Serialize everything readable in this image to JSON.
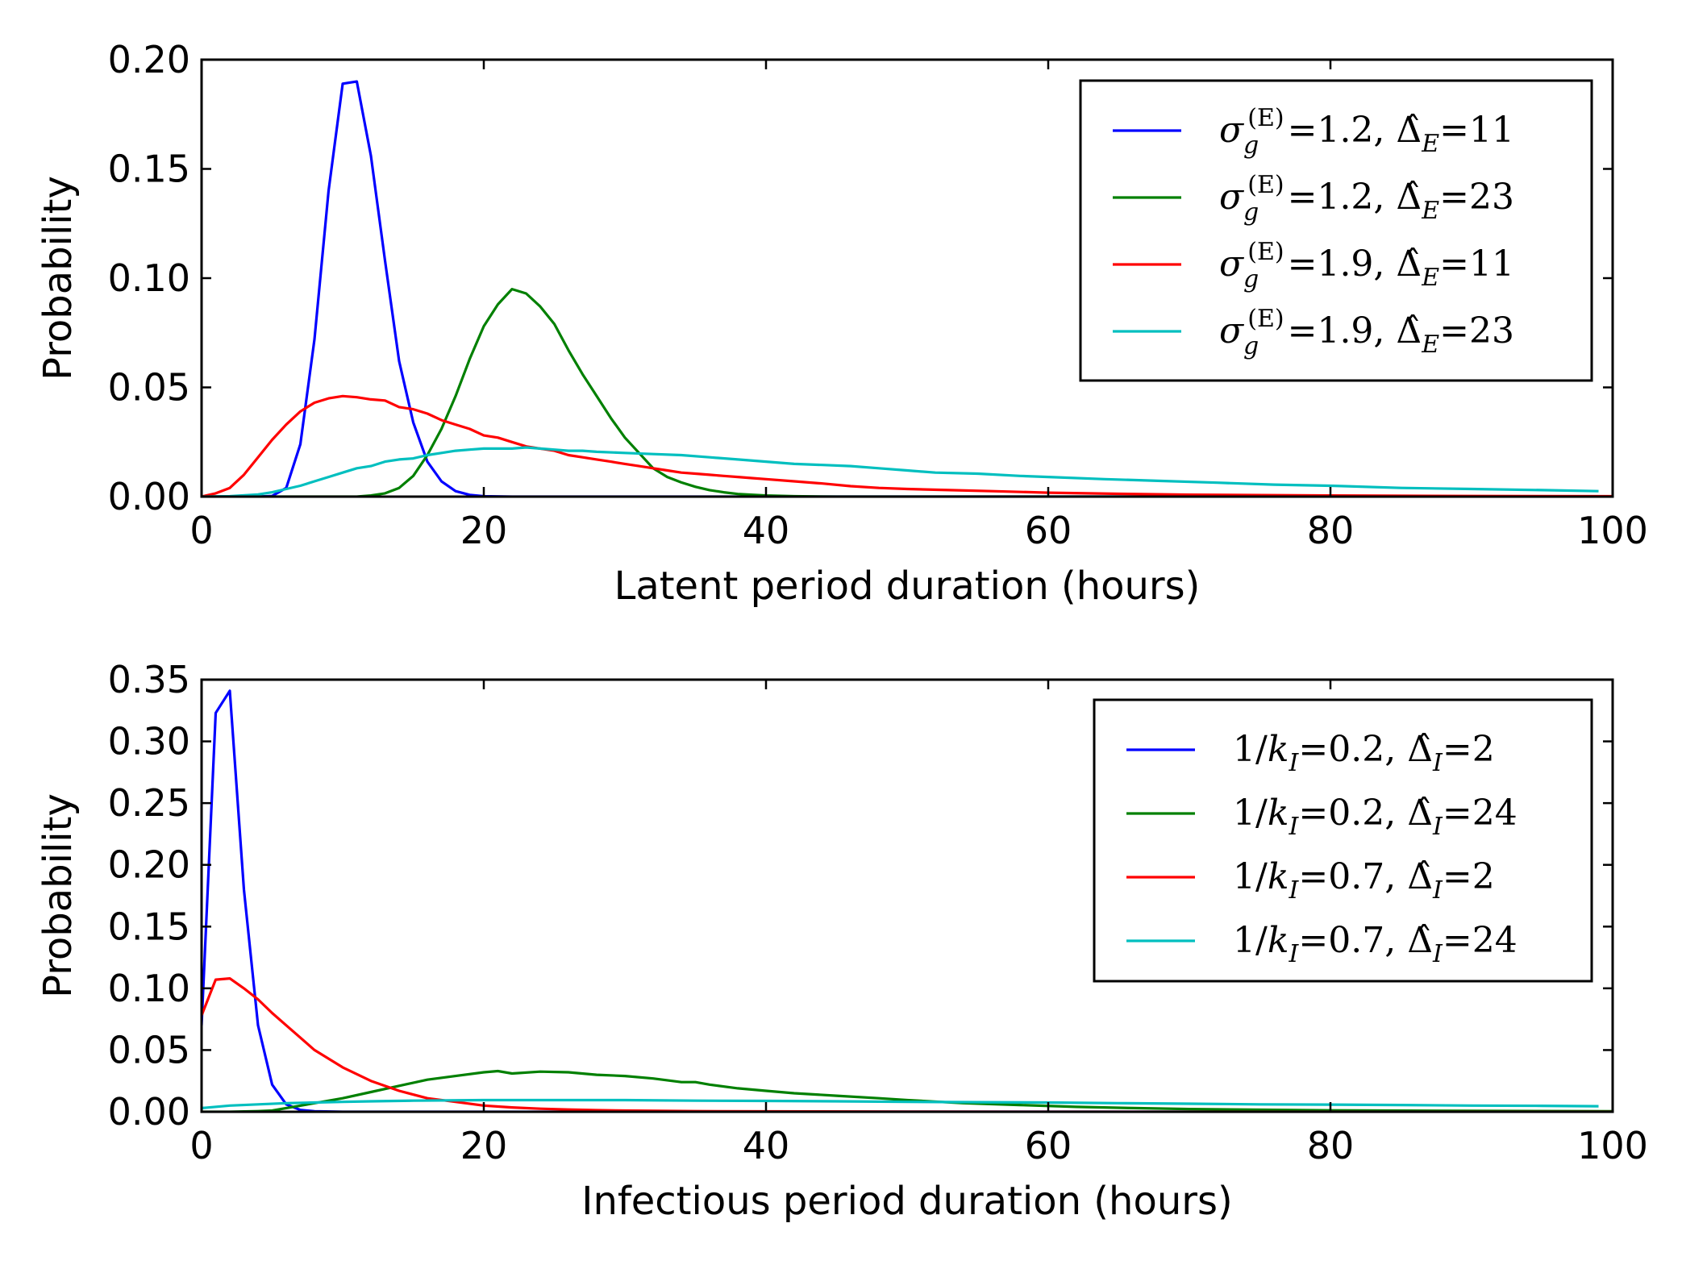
{
  "chart_data": [
    {
      "type": "line",
      "xlabel": "Latent period duration (hours)",
      "ylabel": "Probability",
      "xlim": [
        0,
        100
      ],
      "ylim": [
        0,
        0.2
      ],
      "xticks": [
        0,
        20,
        40,
        60,
        80,
        100
      ],
      "xtick_labels": [
        "0",
        "20",
        "40",
        "60",
        "80",
        "100"
      ],
      "yticks": [
        0,
        0.05,
        0.1,
        0.15,
        0.2
      ],
      "ytick_labels": [
        "0.00",
        "0.05",
        "0.10",
        "0.15",
        "0.20"
      ],
      "grid": false,
      "legend_position": "top-right",
      "series": [
        {
          "name": "σg(E)=1.2, Δ̂E=11",
          "color": "#0000ff",
          "x": [
            0,
            4,
            5,
            6,
            7,
            8,
            9,
            10,
            11,
            12,
            13,
            14,
            15,
            16,
            17,
            18,
            19,
            20,
            22,
            25,
            100
          ],
          "y": [
            0,
            0,
            0.0003,
            0.004,
            0.024,
            0.072,
            0.14,
            0.189,
            0.19,
            0.156,
            0.108,
            0.062,
            0.034,
            0.016,
            0.007,
            0.0025,
            0.0008,
            0.0002,
            0,
            0,
            0
          ]
        },
        {
          "name": "σg(E)=1.2, Δ̂E=23",
          "color": "#008000",
          "x": [
            0,
            11,
            12,
            13,
            14,
            15,
            16,
            17,
            18,
            19,
            20,
            21,
            22,
            23,
            24,
            25,
            26,
            27,
            28,
            29,
            30,
            31,
            32,
            33,
            34,
            35,
            36,
            37,
            38,
            40,
            42,
            45,
            100
          ],
          "y": [
            0,
            0,
            0.0005,
            0.0015,
            0.004,
            0.0095,
            0.019,
            0.031,
            0.046,
            0.063,
            0.078,
            0.088,
            0.095,
            0.093,
            0.087,
            0.079,
            0.067,
            0.056,
            0.046,
            0.036,
            0.027,
            0.02,
            0.013,
            0.009,
            0.0065,
            0.0045,
            0.003,
            0.002,
            0.0012,
            0.0005,
            0.0002,
            0,
            0
          ]
        },
        {
          "name": "σg(E)=1.9, Δ̂E=11",
          "color": "#ff0000",
          "x": [
            0,
            1,
            2,
            3,
            4,
            5,
            6,
            7,
            8,
            9,
            10,
            11,
            12,
            13,
            14,
            15,
            16,
            17,
            18,
            19,
            20,
            21,
            22,
            23,
            24,
            25,
            26,
            27,
            28,
            29,
            30,
            31,
            32,
            33,
            34,
            35,
            36,
            37,
            38,
            39,
            40,
            42,
            44,
            46,
            48,
            50,
            53,
            56,
            60,
            65,
            70,
            80,
            90,
            100
          ],
          "y": [
            0,
            0.0015,
            0.004,
            0.01,
            0.018,
            0.026,
            0.033,
            0.039,
            0.043,
            0.045,
            0.046,
            0.0455,
            0.0445,
            0.044,
            0.041,
            0.04,
            0.038,
            0.035,
            0.033,
            0.031,
            0.028,
            0.027,
            0.025,
            0.023,
            0.022,
            0.021,
            0.019,
            0.018,
            0.017,
            0.016,
            0.015,
            0.014,
            0.013,
            0.012,
            0.011,
            0.0105,
            0.01,
            0.0095,
            0.009,
            0.0085,
            0.008,
            0.007,
            0.006,
            0.0048,
            0.004,
            0.0035,
            0.003,
            0.0025,
            0.0018,
            0.0013,
            0.0009,
            0.0005,
            0.0003,
            0.0002
          ]
        },
        {
          "name": "σg(E)=1.9, Δ̂E=23",
          "color": "#00bfbf",
          "x": [
            0,
            2,
            4,
            5,
            6,
            7,
            8,
            9,
            10,
            11,
            12,
            13,
            14,
            15,
            16,
            17,
            18,
            19,
            20,
            21,
            22,
            23,
            24,
            25,
            26,
            27,
            28,
            30,
            32,
            34,
            36,
            38,
            40,
            42,
            44,
            46,
            48,
            50,
            52,
            55,
            58,
            60,
            64,
            68,
            72,
            76,
            80,
            85,
            90,
            95,
            99
          ],
          "y": [
            0,
            0.0002,
            0.001,
            0.002,
            0.0035,
            0.005,
            0.007,
            0.009,
            0.011,
            0.013,
            0.014,
            0.016,
            0.017,
            0.0175,
            0.019,
            0.02,
            0.021,
            0.0215,
            0.022,
            0.022,
            0.022,
            0.0225,
            0.022,
            0.0215,
            0.021,
            0.021,
            0.0205,
            0.02,
            0.0195,
            0.019,
            0.018,
            0.017,
            0.016,
            0.015,
            0.0145,
            0.014,
            0.013,
            0.012,
            0.011,
            0.0105,
            0.0095,
            0.009,
            0.008,
            0.0072,
            0.0064,
            0.0055,
            0.005,
            0.004,
            0.0035,
            0.003,
            0.0025
          ]
        }
      ]
    },
    {
      "type": "line",
      "xlabel": "Infectious period duration (hours)",
      "ylabel": "Probability",
      "xlim": [
        0,
        100
      ],
      "ylim": [
        0,
        0.35
      ],
      "xticks": [
        0,
        20,
        40,
        60,
        80,
        100
      ],
      "xtick_labels": [
        "0",
        "20",
        "40",
        "60",
        "80",
        "100"
      ],
      "yticks": [
        0,
        0.05,
        0.1,
        0.15,
        0.2,
        0.25,
        0.3,
        0.35
      ],
      "ytick_labels": [
        "0.00",
        "0.05",
        "0.10",
        "0.15",
        "0.20",
        "0.25",
        "0.30",
        "0.35"
      ],
      "grid": false,
      "legend_position": "top-right",
      "series": [
        {
          "name": "1/kI=0.2, Δ̂I=2",
          "color": "#0000ff",
          "x": [
            0,
            1,
            2,
            3,
            4,
            5,
            6,
            7,
            8,
            10,
            100
          ],
          "y": [
            0.07,
            0.323,
            0.341,
            0.18,
            0.07,
            0.022,
            0.006,
            0.0015,
            0.0004,
            0,
            0
          ]
        },
        {
          "name": "1/kI=0.2, Δ̂I=24",
          "color": "#008000",
          "x": [
            0,
            2,
            4,
            5,
            6,
            8,
            10,
            12,
            14,
            16,
            18,
            20,
            21,
            22,
            24,
            26,
            28,
            30,
            32,
            34,
            35,
            36,
            38,
            40,
            42,
            45,
            48,
            50,
            54,
            58,
            62,
            66,
            70,
            80,
            90,
            100
          ],
          "y": [
            0,
            0,
            0.0005,
            0.001,
            0.003,
            0.007,
            0.011,
            0.016,
            0.021,
            0.026,
            0.029,
            0.032,
            0.033,
            0.031,
            0.0325,
            0.032,
            0.03,
            0.029,
            0.027,
            0.024,
            0.024,
            0.022,
            0.019,
            0.017,
            0.015,
            0.013,
            0.011,
            0.0095,
            0.007,
            0.0055,
            0.004,
            0.003,
            0.0022,
            0.0012,
            0.0007,
            0.0004
          ]
        },
        {
          "name": "1/kI=0.7, Δ̂I=2",
          "color": "#ff0000",
          "x": [
            0,
            1,
            2,
            3,
            4,
            5,
            6,
            7,
            8,
            10,
            12,
            14,
            16,
            18,
            20,
            22,
            24,
            26,
            28,
            30,
            35,
            40,
            50,
            60,
            100
          ],
          "y": [
            0.078,
            0.107,
            0.108,
            0.1,
            0.091,
            0.08,
            0.07,
            0.06,
            0.05,
            0.036,
            0.025,
            0.017,
            0.011,
            0.008,
            0.005,
            0.0035,
            0.0025,
            0.0018,
            0.0013,
            0.001,
            0.0005,
            0.0003,
            0.0001,
            0,
            0
          ]
        },
        {
          "name": "1/kI=0.7, Δ̂I=24",
          "color": "#00bfbf",
          "x": [
            0,
            2,
            4,
            6,
            8,
            10,
            12,
            15,
            20,
            25,
            30,
            35,
            40,
            45,
            50,
            55,
            60,
            65,
            70,
            75,
            80,
            85,
            90,
            95,
            99
          ],
          "y": [
            0.003,
            0.005,
            0.006,
            0.007,
            0.0075,
            0.008,
            0.0085,
            0.009,
            0.0095,
            0.0095,
            0.0095,
            0.009,
            0.0088,
            0.0085,
            0.008,
            0.0078,
            0.0075,
            0.007,
            0.0065,
            0.006,
            0.0058,
            0.0055,
            0.005,
            0.0048,
            0.0045
          ]
        }
      ]
    }
  ]
}
